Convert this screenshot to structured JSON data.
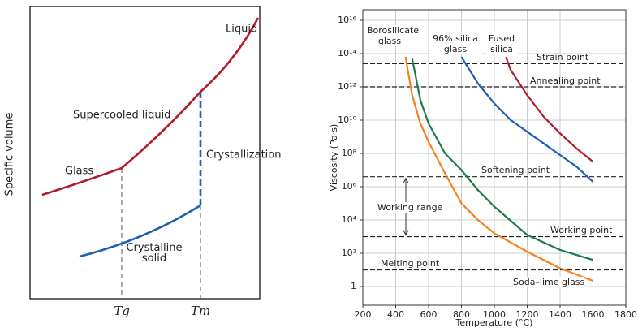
{
  "chart_data": [
    {
      "type": "schematic",
      "ylabel": "Specific volume",
      "xtick_labels": [
        "Tg",
        "Tm"
      ],
      "annotations": [
        "Liquid",
        "Supercooled liquid",
        "Glass",
        "Crystallization",
        "Crystalline solid"
      ]
    },
    {
      "type": "line",
      "xlabel": "Temperature (°C)",
      "ylabel": "Viscosity (Pa·s)",
      "xlim": [
        200,
        1800
      ],
      "xticks": [
        200,
        400,
        600,
        800,
        1000,
        1200,
        1400,
        1600,
        1800
      ],
      "ylim": [
        0.076,
        4.3e+16
      ],
      "yscale": "log",
      "yticks": [
        1,
        {
          "value": 100,
          "label": "10²"
        },
        {
          "value": 10000,
          "label": "10⁴"
        },
        {
          "value": 1000000,
          "label": "10⁶"
        },
        {
          "value": 100000000,
          "label": "10⁸"
        },
        {
          "value": 10000000000,
          "label": "10¹⁰"
        },
        {
          "value": 1000000000000,
          "label": "10¹²"
        },
        {
          "value": 100000000000000,
          "label": "10¹⁴"
        },
        {
          "value": 10000000000000000,
          "label": "10¹⁶"
        }
      ],
      "grid": true,
      "series": [
        {
          "name": "Soda–lime glass",
          "color": "#f5821f",
          "x": [
            460,
            500,
            550,
            600,
            700,
            800,
            900,
            1000,
            1200,
            1400,
            1600
          ],
          "values": [
            63000000000000.0,
            320000000000.0,
            6300000000.0,
            500000000.0,
            6300000.0,
            100000.0,
            10000.0,
            1600,
            126,
            12.6,
            2.2
          ]
        },
        {
          "name": "Borosilicate glass",
          "color": "#1d7a4c",
          "x": [
            500,
            550,
            600,
            700,
            800,
            900,
            1000,
            1200,
            1400,
            1600
          ],
          "values": [
            50000000000000.0,
            160000000000.0,
            6300000000.0,
            100000000.0,
            10000000.0,
            630000.0,
            63000.0,
            1260,
            160,
            40
          ]
        },
        {
          "name": "96% silica glass",
          "color": "#1f5fb0",
          "x": [
            800,
            900,
            1000,
            1100,
            1200,
            1300,
            1400,
            1500,
            1600
          ],
          "values": [
            63000000000000.0,
            1600000000000.0,
            100000000000.0,
            10000000000.0,
            2000000000.0,
            400000000.0,
            80000000.0,
            16000000.0,
            2000000.0
          ]
        },
        {
          "name": "Fused silica",
          "color": "#b01c2e",
          "x": [
            1070,
            1100,
            1200,
            1300,
            1400,
            1500,
            1600
          ],
          "values": [
            63000000000000.0,
            10000000000000.0,
            320000000000.0,
            16000000000.0,
            1600000000.0,
            200000000.0,
            32000000.0
          ]
        }
      ],
      "hlines": [
        {
          "value": 25000000000000.0,
          "label": "Strain point"
        },
        {
          "value": 1000000000000.0,
          "label": "Annealing point"
        },
        {
          "value": 4000000.0,
          "label": "Softening point"
        },
        {
          "value": 1000,
          "label": "Working point"
        },
        {
          "value": 10,
          "label": "Melting point"
        }
      ],
      "annotations": [
        "Working range"
      ]
    }
  ]
}
